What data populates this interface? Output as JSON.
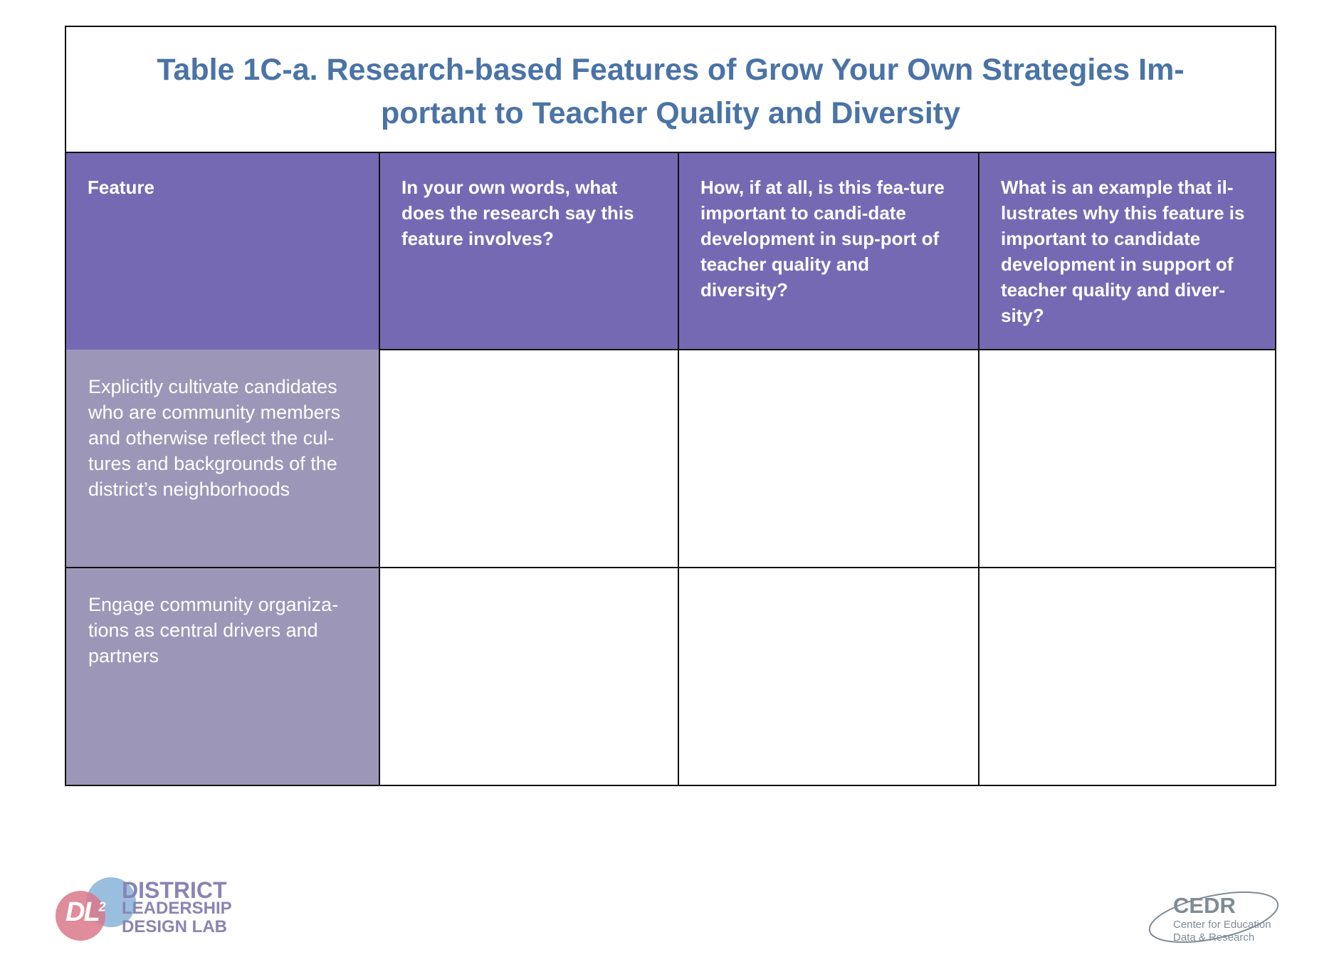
{
  "title": "Table 1C-a. Research-based Features of Grow Your Own Strategies Im-portant to Teacher Quality and Diversity",
  "columns": [
    "Feature",
    "In your own words, what does the research say this feature involves?",
    "How, if at all, is this fea-ture important to candi-date development in sup-port of teacher quality and diversity?",
    "What is an example that il-lustrates why this feature is important to candidate development in support of teacher quality and diver-sity?"
  ],
  "rows": [
    {
      "feature": "Explicitly cultivate candidates who are community members and otherwise reflect the cul-tures and backgrounds of the district’s neighborhoods",
      "cells": [
        "",
        "",
        ""
      ]
    },
    {
      "feature": "Engage community organiza-tions as central drivers and partners",
      "cells": [
        "",
        "",
        ""
      ]
    }
  ],
  "logos": {
    "dl2": {
      "mark": "DL",
      "sup": "2",
      "line1": "DISTRICT",
      "line2": "LEADERSHIP",
      "line3": "DESIGN LAB"
    },
    "cedr": {
      "name": "CEDR",
      "line1": "Center for Education",
      "line2": "Data & Research"
    }
  },
  "colors": {
    "title": "#4a73a6",
    "header_bg": "#7669b4",
    "feature_bg": "#9c97b9",
    "border": "#111111"
  }
}
